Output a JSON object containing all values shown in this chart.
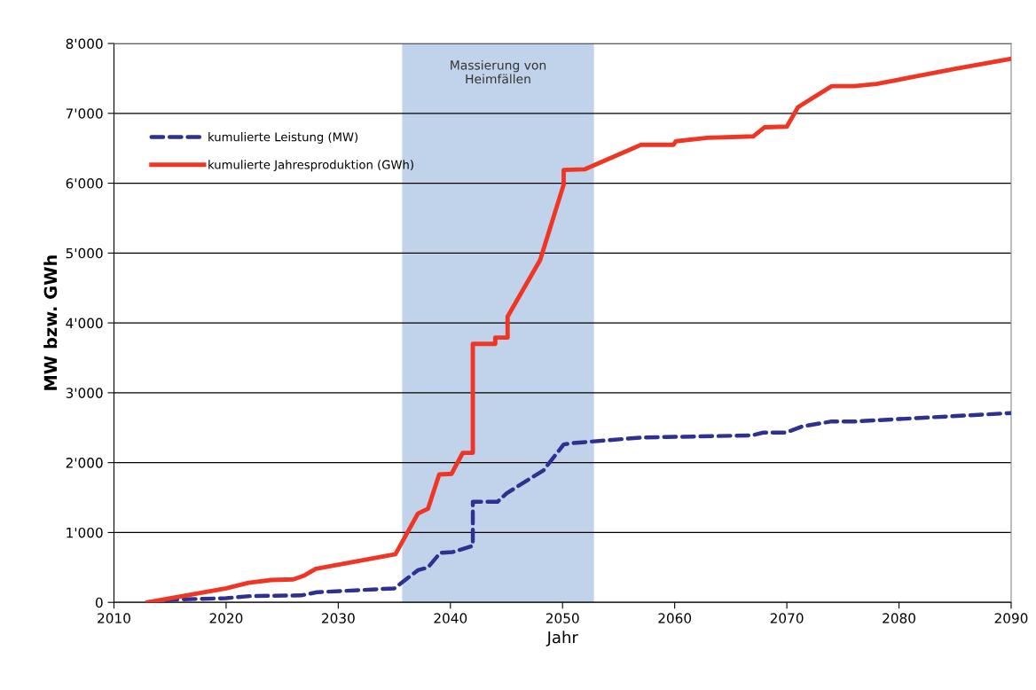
{
  "chart_data": {
    "type": "line",
    "xlabel": "Jahr",
    "ylabel": "MW bzw. GWh",
    "xlim": [
      2010,
      2090
    ],
    "xticks": [
      2010,
      2020,
      2030,
      2040,
      2050,
      2060,
      2070,
      2080,
      2090
    ],
    "ylim": [
      0,
      8000
    ],
    "yticks": [
      0,
      {
        "value": 1000,
        "label": "1'000"
      },
      {
        "value": 2000,
        "label": "2'000"
      },
      {
        "value": 3000,
        "label": "3'000"
      },
      {
        "value": 4000,
        "label": "4'000"
      },
      {
        "value": 5000,
        "label": "5'000"
      },
      {
        "value": 6000,
        "label": "6'000"
      },
      {
        "value": 7000,
        "label": "7'000"
      },
      {
        "value": 8000,
        "label": "8'000"
      }
    ],
    "grid": "y",
    "legend": "top left",
    "bands": [
      {
        "axis": "x",
        "from": 2035.7,
        "to": 2052.8,
        "label": "Massierung von\nHeimfällen",
        "color": "#c0d3ea"
      }
    ],
    "series": [
      {
        "name": "kumulierte Leistung (MW)",
        "color": "#2e3192",
        "line_style": "dashed",
        "x": [
          2013,
          2015.4,
          2020,
          2022.1,
          2026.7,
          2028.1,
          2035,
          2037.1,
          2038,
          2039.1,
          2040.2,
          2042,
          2042,
          2044.2,
          2045,
          2048.3,
          2050.1,
          2050.9,
          2057.1,
          2066.9,
          2067.9,
          2069.9,
          2071.4,
          2074,
          2076.1,
          2090
        ],
        "values": [
          0,
          40,
          60,
          90,
          100,
          145,
          200,
          460,
          500,
          710,
          720,
          810,
          1440,
          1440,
          1560,
          1890,
          2260,
          2280,
          2360,
          2390,
          2430,
          2430,
          2520,
          2590,
          2590,
          2710
        ]
      },
      {
        "name": "kumulierte Jahresproduktion (GWh)",
        "color": "#ef3524",
        "line_style": "solid",
        "x": [
          2013,
          2020,
          2022,
          2024,
          2026,
          2026.9,
          2028,
          2035.1,
          2037.1,
          2038,
          2039,
          2040.1,
          2041.1,
          2042,
          2042,
          2044,
          2044,
          2045.1,
          2045.1,
          2048,
          2050.1,
          2050.1,
          2052,
          2057,
          2059.9,
          2060.1,
          2062.9,
          2067,
          2068,
          2070,
          2071,
          2074,
          2076,
          2078,
          2085.1,
          2090
        ],
        "values": [
          0,
          200,
          280,
          320,
          330,
          380,
          480,
          690,
          1270,
          1340,
          1830,
          1840,
          2140,
          2140,
          3700,
          3700,
          3790,
          3790,
          4090,
          4900,
          5980,
          6190,
          6200,
          6550,
          6550,
          6600,
          6650,
          6670,
          6800,
          6810,
          7090,
          7390,
          7390,
          7420,
          7640,
          7780
        ]
      }
    ]
  }
}
